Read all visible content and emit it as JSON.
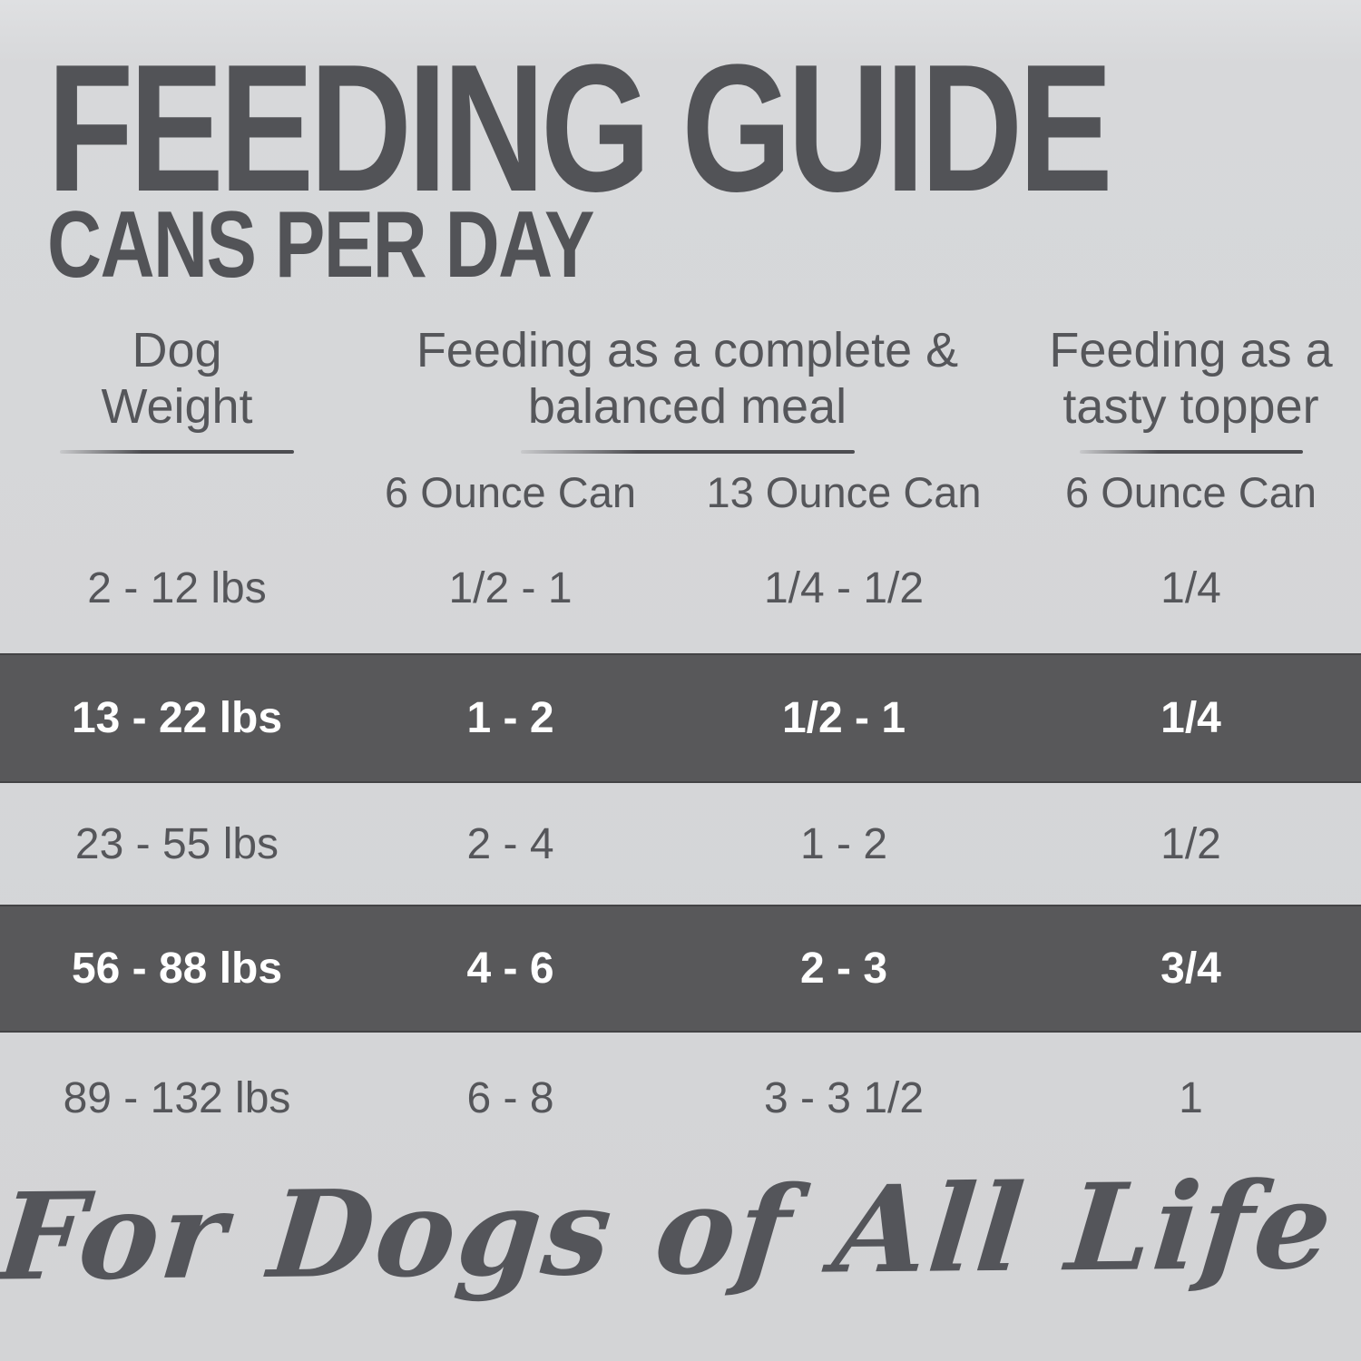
{
  "page": {
    "title": "FEEDING GUIDE",
    "subtitle": "CANS PER DAY",
    "footer_script": "For Dogs of All Life Stages"
  },
  "colors": {
    "background": "#d5d6d8",
    "highlight_band": "#58585a",
    "text_dark": "#55565a",
    "band_text": "#ffffff"
  },
  "display": {
    "headers": {
      "weight": {
        "line1": "Dog",
        "line2": "Weight"
      },
      "meal": {
        "line1": "Feeding as a complete &",
        "line2": "balanced meal"
      },
      "topper": {
        "line1": "Feeding as a",
        "line2": "tasty topper"
      }
    }
  },
  "chart_data": {
    "type": "table",
    "title": "FEEDING GUIDE",
    "subtitle": "CANS PER DAY",
    "column_groups": [
      {
        "label": "Dog Weight",
        "span": 1
      },
      {
        "label": "Feeding as a complete & balanced meal",
        "span": 2
      },
      {
        "label": "Feeding as a tasty topper",
        "span": 1
      }
    ],
    "columns": [
      "Dog Weight",
      "6 Ounce Can",
      "13 Ounce Can",
      "6 Ounce Can"
    ],
    "rows": [
      [
        "2 - 12 lbs",
        "1/2 - 1",
        "1/4 - 1/2",
        "1/4"
      ],
      [
        "13 - 22 lbs",
        "1 - 2",
        "1/2 - 1",
        "1/4"
      ],
      [
        "23 - 55 lbs",
        "2 - 4",
        "1 - 2",
        "1/2"
      ],
      [
        "56 - 88 lbs",
        "4 - 6",
        "2 - 3",
        "3/4"
      ],
      [
        "89 - 132 lbs",
        "6 - 8",
        "3 - 3 1/2",
        "1"
      ]
    ],
    "highlighted_rows": [
      1,
      3
    ],
    "footnote": "For Dogs of All Life Stages"
  }
}
